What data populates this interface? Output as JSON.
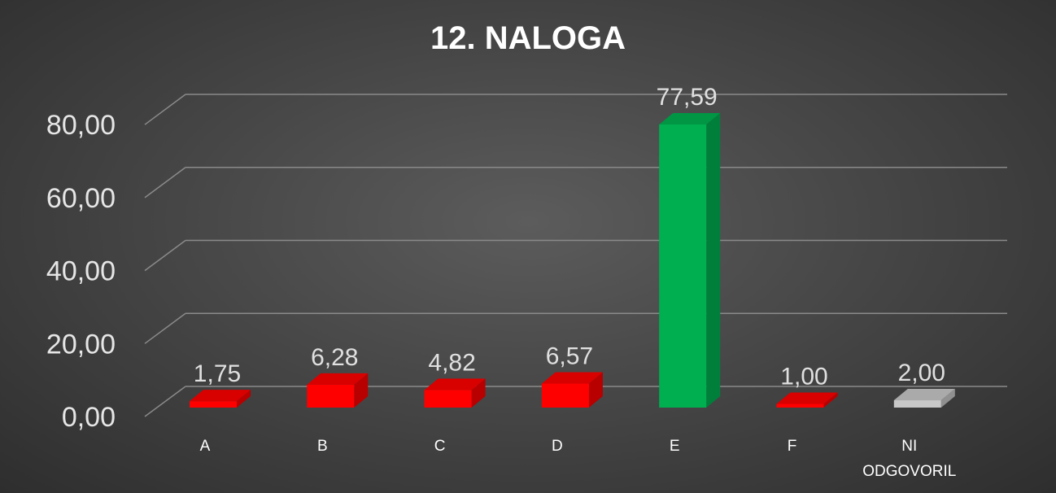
{
  "chart_data": {
    "type": "bar",
    "title": "12. NALOGA",
    "categories": [
      "A",
      "B",
      "C",
      "D",
      "E",
      "F",
      "NI ODGOVORIL"
    ],
    "values": [
      1.75,
      6.28,
      4.82,
      6.57,
      77.59,
      1.0,
      2.0
    ],
    "value_labels": [
      "1,75",
      "6,28",
      "4,82",
      "6,57",
      "77,59",
      "1,00",
      "2,00"
    ],
    "ylim": [
      0,
      80
    ],
    "yticks": [
      0,
      20,
      40,
      60,
      80
    ],
    "ytick_labels": [
      "0,00",
      "20,00",
      "40,00",
      "60,00",
      "80,00"
    ],
    "grid": true,
    "legend": "none",
    "bar_colors": {
      "default": "#ff0000",
      "highlight": "#00b050",
      "no_answer": "#c8c8c8"
    },
    "bar_color_keys": [
      "default",
      "default",
      "default",
      "default",
      "highlight",
      "default",
      "no_answer"
    ]
  }
}
